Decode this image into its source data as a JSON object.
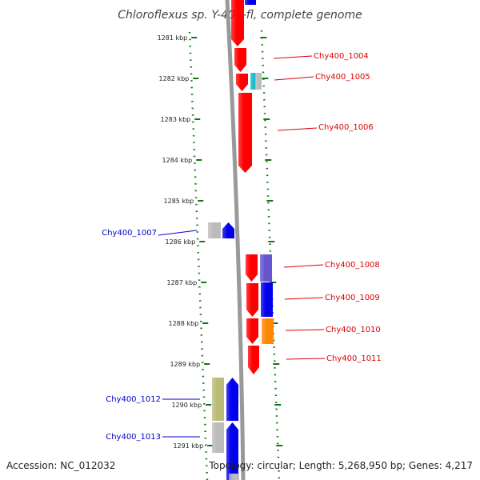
{
  "title": "Chloroflexus sp. Y-400-fl, complete genome",
  "footer": {
    "accession": "Accession: NC_012032",
    "summary": "Topology: circular; Length: 5,268,950 bp; Genes: 4,217"
  },
  "ticks": [
    {
      "label": "1281 kbp"
    },
    {
      "label": "1282 kbp"
    },
    {
      "label": "1283 kbp"
    },
    {
      "label": "1284 kbp"
    },
    {
      "label": "1285 kbp"
    },
    {
      "label": "1286 kbp"
    },
    {
      "label": "1287 kbp"
    },
    {
      "label": "1288 kbp"
    },
    {
      "label": "1289 kbp"
    },
    {
      "label": "1290 kbp"
    },
    {
      "label": "1291 kbp"
    }
  ],
  "gene_labels": [
    {
      "name": "Chy400_1004",
      "strand": "forward"
    },
    {
      "name": "Chy400_1005",
      "strand": "forward"
    },
    {
      "name": "Chy400_1006",
      "strand": "forward"
    },
    {
      "name": "Chy400_1007",
      "strand": "reverse"
    },
    {
      "name": "Chy400_1008",
      "strand": "forward"
    },
    {
      "name": "Chy400_1009",
      "strand": "forward"
    },
    {
      "name": "Chy400_1010",
      "strand": "forward"
    },
    {
      "name": "Chy400_1011",
      "strand": "forward"
    },
    {
      "name": "Chy400_1012",
      "strand": "reverse"
    },
    {
      "name": "Chy400_1013",
      "strand": "reverse"
    }
  ],
  "colors": {
    "forward": "#dd0000",
    "reverse": "#0000cc",
    "gene_red": "#ff0000",
    "gene_blue": "#0000ee",
    "gene_purple": "#6655cc",
    "gene_orange": "#ff8800",
    "gene_cyan": "#22bbcc",
    "gene_gray": "#bbbbbb",
    "gene_olive": "#bbbb77",
    "tick_green": "#117711",
    "axis_gray": "#999999"
  }
}
